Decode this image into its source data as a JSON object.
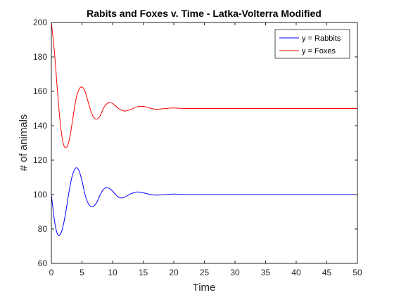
{
  "chart_data": {
    "type": "line",
    "title": "Rabits and Foxes v. Time - Latka-Volterra Modified",
    "xlabel": "Time",
    "ylabel": "# of animals",
    "xlim": [
      0,
      50
    ],
    "ylim": [
      60,
      200
    ],
    "xticks": [
      "0",
      "5",
      "10",
      "15",
      "20",
      "25",
      "30",
      "35",
      "40",
      "45",
      "50"
    ],
    "yticks": [
      "60",
      "80",
      "100",
      "120",
      "140",
      "160",
      "180",
      "200"
    ],
    "grid": false,
    "legend_position": "top-right",
    "series": [
      {
        "name": "y = Rabbits",
        "color": "#0000ff",
        "x": [
          0,
          0.5,
          1,
          1.5,
          2,
          2.5,
          3,
          3.5,
          4,
          4.5,
          5,
          5.5,
          6,
          6.5,
          7,
          7.5,
          8,
          8.5,
          9,
          9.5,
          10,
          10.5,
          11,
          11.5,
          12,
          12.5,
          13,
          14,
          15,
          16,
          17,
          18,
          19,
          20,
          22,
          24,
          26,
          28,
          30,
          35,
          40,
          45,
          50
        ],
        "y": [
          100,
          85,
          77,
          77,
          83,
          93,
          104,
          112,
          115.5,
          114,
          108,
          100,
          95,
          93,
          93.5,
          96,
          100,
          103,
          104,
          103.5,
          102,
          100,
          98.5,
          98,
          98.5,
          99.5,
          100.5,
          101.5,
          101,
          100.2,
          99.7,
          99.8,
          100.1,
          100.3,
          100,
          100,
          100,
          100,
          100,
          100,
          100,
          100,
          100
        ]
      },
      {
        "name": "y = Foxes",
        "color": "#ff0000",
        "x": [
          0,
          0.5,
          1,
          1.5,
          2,
          2.5,
          3,
          3.5,
          4,
          4.5,
          5,
          5.5,
          6,
          6.5,
          7,
          7.5,
          8,
          8.5,
          9,
          9.5,
          10,
          10.5,
          11,
          11.5,
          12,
          12.5,
          13,
          14,
          15,
          16,
          17,
          18,
          19,
          20,
          22,
          24,
          26,
          28,
          30,
          35,
          40,
          45,
          50
        ],
        "y": [
          200,
          183,
          160,
          140,
          129,
          127.5,
          133,
          144,
          155,
          161,
          162.5,
          160,
          154,
          148,
          144.5,
          144,
          146,
          150,
          152.5,
          153.5,
          153,
          151.5,
          150,
          149,
          148.5,
          149,
          149.5,
          151,
          151.2,
          150.3,
          149.6,
          149.8,
          150.1,
          150.3,
          150,
          150,
          150,
          150,
          150,
          150,
          150,
          150,
          150
        ]
      }
    ]
  }
}
